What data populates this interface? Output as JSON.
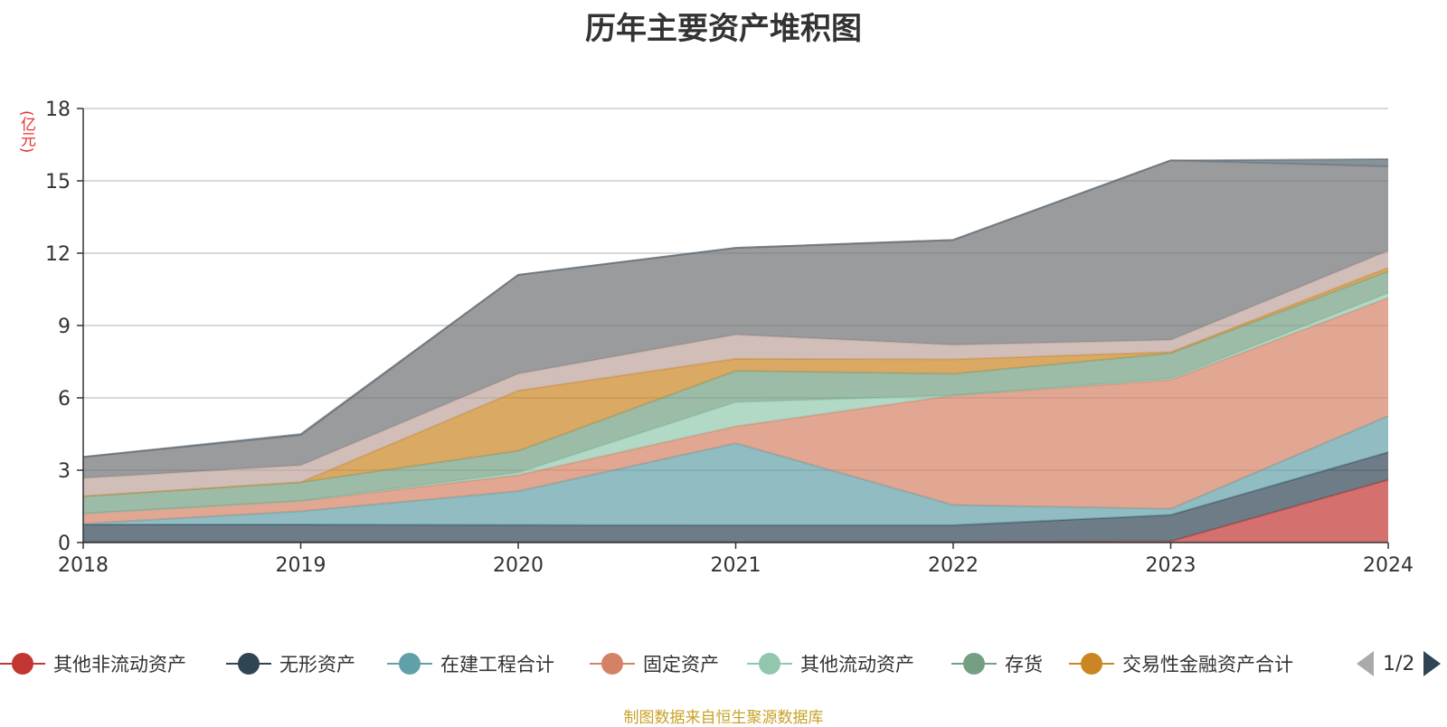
{
  "chart_data": {
    "type": "area",
    "stacked": true,
    "title": "历年主要资产堆积图",
    "y_unit": "(亿元)",
    "categories": [
      "2018",
      "2019",
      "2020",
      "2021",
      "2022",
      "2023",
      "2024"
    ],
    "ylim": [
      0,
      18
    ],
    "yticks": [
      0,
      3,
      6,
      9,
      12,
      15,
      18
    ],
    "grid": true,
    "legend_position": "bottom",
    "series": [
      {
        "name": "其他非流动资产",
        "color": "#c23531",
        "values": [
          0.02,
          0.02,
          0.02,
          0.02,
          0.02,
          0.05,
          2.6
        ]
      },
      {
        "name": "无形资产",
        "color": "#2f4554",
        "values": [
          0.73,
          0.73,
          0.71,
          0.7,
          0.7,
          1.1,
          1.15
        ]
      },
      {
        "name": "在建工程合计",
        "color": "#61a0a8",
        "values": [
          0.03,
          0.55,
          1.4,
          3.4,
          0.84,
          0.25,
          1.5
        ]
      },
      {
        "name": "固定资产",
        "color": "#d48265",
        "values": [
          0.42,
          0.42,
          0.67,
          0.7,
          4.54,
          5.35,
          4.9
        ]
      },
      {
        "name": "其他流动资产",
        "color": "#91c7ae",
        "values": [
          0.0,
          0.0,
          0.1,
          1.0,
          0.0,
          0.05,
          0.2
        ]
      },
      {
        "name": "存货",
        "color": "#749f83",
        "values": [
          0.72,
          0.78,
          0.9,
          1.3,
          0.9,
          1.05,
          0.9
        ]
      },
      {
        "name": "交易性金融资产合计",
        "color": "#ca8622",
        "values": [
          0.0,
          0.0,
          2.5,
          0.5,
          0.6,
          0.05,
          0.15
        ]
      },
      {
        "name": "hidden-series-8",
        "color": "#bda29a",
        "values": [
          0.75,
          0.7,
          0.7,
          1.0,
          0.6,
          0.5,
          0.7
        ]
      },
      {
        "name": "hidden-series-9",
        "color": "#6e7074",
        "values": [
          0.88,
          1.25,
          4.1,
          3.6,
          4.35,
          7.45,
          3.5
        ]
      },
      {
        "name": "hidden-series-10",
        "color": "#546570",
        "values": [
          0.0,
          0.05,
          0.0,
          0.0,
          0.0,
          0.0,
          0.3
        ]
      }
    ]
  },
  "legend": {
    "page_indicator": "1/2",
    "visible_count": 7
  },
  "footer": {
    "source_note": "制图数据来自恒生聚源数据库"
  }
}
